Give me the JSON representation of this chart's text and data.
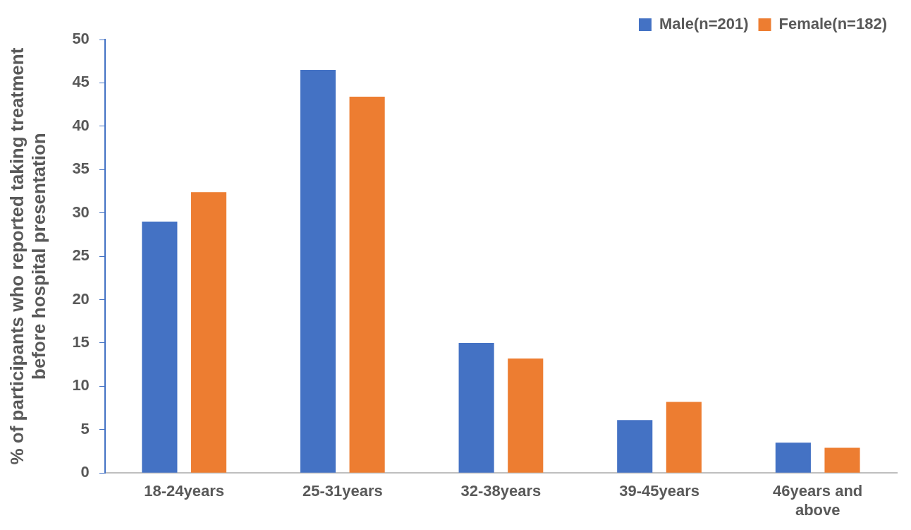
{
  "chart_data": {
    "type": "bar",
    "ylabel": "% of participants who reported taking treatment before hospital presentation",
    "categories": [
      "18-24years",
      "25-31years",
      "32-38years",
      "39-45years",
      "46years and above"
    ],
    "series": [
      {
        "name": "Male(n=201)",
        "color": "#4472c4",
        "values": [
          29,
          46.5,
          15,
          6.1,
          3.5
        ]
      },
      {
        "name": "Female(n=182)",
        "color": "#ed7d31",
        "values": [
          32.4,
          43.4,
          13.2,
          8.2,
          2.9
        ]
      }
    ],
    "ylim": [
      0,
      50
    ],
    "yticks": [
      0,
      5,
      10,
      15,
      20,
      25,
      30,
      35,
      40,
      45,
      50
    ],
    "grid": false,
    "legend": "top right"
  }
}
